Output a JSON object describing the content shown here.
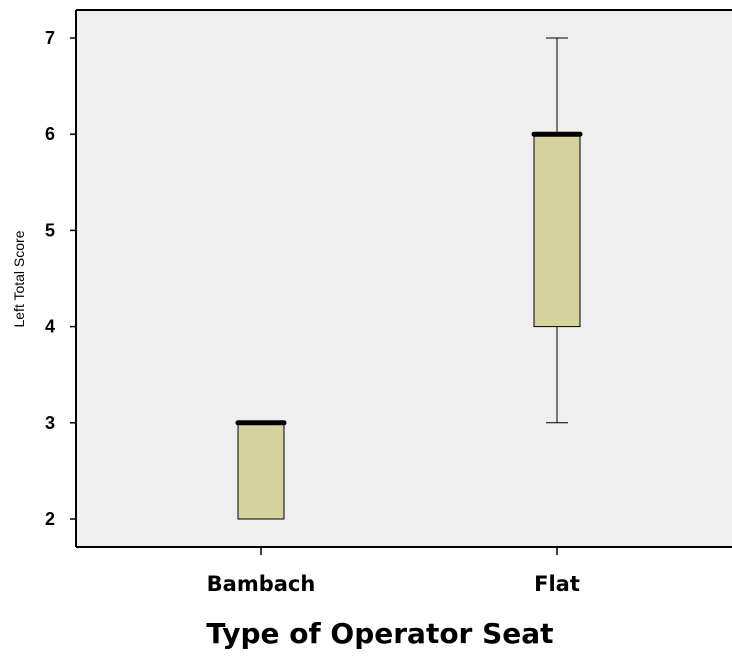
{
  "chart_data": {
    "type": "box",
    "xlabel": "Type of Operator Seat",
    "ylabel": "Left Total Score",
    "ylim": [
      1.75,
      7.3
    ],
    "yticks": [
      2,
      3,
      4,
      5,
      6,
      7
    ],
    "grid": false,
    "categories": [
      "Bambach",
      "Flat"
    ],
    "boxes": [
      {
        "category": "Bambach",
        "min": 2,
        "q1": 2,
        "median": 3,
        "q3": 3,
        "max": 3
      },
      {
        "category": "Flat",
        "min": 3,
        "q1": 4,
        "median": 6,
        "q3": 6,
        "max": 7
      }
    ]
  },
  "colors": {
    "plot_background": "#efefef",
    "box_fill": "#d6d2a0",
    "box_stroke": "#000000",
    "median_line": "#000000"
  }
}
